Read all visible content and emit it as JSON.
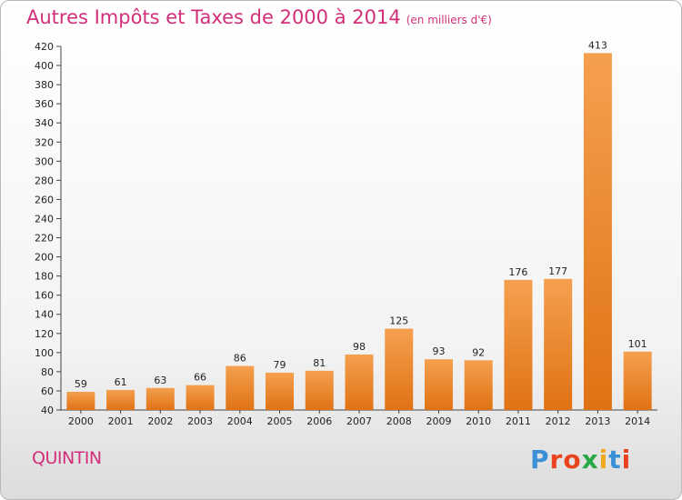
{
  "chart_data": {
    "type": "bar",
    "title": "Autres Impôts et Taxes de 2000 à 2014",
    "subtitle": "(en milliers d'€)",
    "categories": [
      "2000",
      "2001",
      "2002",
      "2003",
      "2004",
      "2005",
      "2006",
      "2007",
      "2008",
      "2009",
      "2010",
      "2011",
      "2012",
      "2013",
      "2014"
    ],
    "values": [
      59,
      61,
      63,
      66,
      86,
      79,
      81,
      98,
      125,
      93,
      92,
      176,
      177,
      413,
      101
    ],
    "ylim": [
      40,
      420
    ],
    "yticks": [
      40,
      60,
      80,
      100,
      120,
      140,
      160,
      180,
      200,
      220,
      240,
      260,
      280,
      300,
      320,
      340,
      360,
      380,
      400,
      420
    ],
    "grid": false,
    "bar_colors": {
      "top": "#f5a04f",
      "bottom": "#e07214"
    }
  },
  "footer": {
    "town": "QUINTIN",
    "logo_letters": [
      "P",
      "r",
      "o",
      "x",
      "i",
      "t",
      "i"
    ],
    "logo_colors": [
      "#3a8fd6",
      "#e8431e",
      "#e8431e",
      "#29a846",
      "#f0a91d",
      "#3a8fd6",
      "#e8431e"
    ]
  },
  "colors": {
    "accent": "#d22f7a"
  }
}
